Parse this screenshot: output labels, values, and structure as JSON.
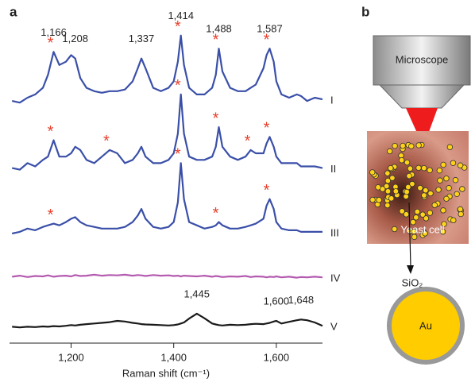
{
  "panel_labels": [
    "a",
    "b"
  ],
  "chart_data": {
    "type": "line",
    "xlabel": "Raman shift (cm⁻¹)",
    "xlim": [
      1080,
      1690
    ],
    "ylim": [
      0,
      100
    ],
    "xticks": [
      {
        "value": 1200,
        "label": "1,200"
      },
      {
        "value": 1400,
        "label": "1,400"
      },
      {
        "value": 1600,
        "label": "1,600"
      }
    ],
    "marker": "*",
    "marker_color": "#e8402a",
    "x": [
      1085,
      1100,
      1115,
      1130,
      1145,
      1155,
      1166,
      1177,
      1190,
      1200,
      1208,
      1218,
      1230,
      1245,
      1260,
      1275,
      1290,
      1305,
      1320,
      1330,
      1337,
      1345,
      1360,
      1375,
      1390,
      1400,
      1408,
      1414,
      1420,
      1430,
      1445,
      1460,
      1475,
      1482,
      1488,
      1495,
      1510,
      1525,
      1540,
      1550,
      1560,
      1575,
      1581,
      1587,
      1595,
      1600,
      1610,
      1625,
      1640,
      1648,
      1660,
      1675,
      1690
    ],
    "series": [
      {
        "name": "I",
        "color": "#3a4fa8",
        "values": [
          74,
          73.5,
          75,
          76,
          78,
          82,
          89,
          85,
          86,
          88,
          87,
          81,
          78,
          77,
          76.5,
          77,
          77,
          77.5,
          80,
          84,
          87,
          84,
          78,
          77,
          78,
          80,
          86,
          94,
          85,
          78,
          76,
          76,
          78,
          82,
          90,
          83,
          78,
          77,
          77,
          78,
          79,
          84,
          88,
          90,
          86,
          80,
          76,
          75,
          76,
          75.5,
          74,
          75,
          74.5
        ],
        "markers": [
          1166,
          1414,
          1488,
          1587
        ],
        "peaks": [
          {
            "value": 1166,
            "label": "1,166"
          },
          {
            "value": 1208,
            "label": "1,208"
          },
          {
            "value": 1337,
            "label": "1,337"
          },
          {
            "value": 1414,
            "label": "1,414"
          },
          {
            "value": 1488,
            "label": "1,488"
          },
          {
            "value": 1587,
            "label": "1,587"
          }
        ]
      },
      {
        "name": "II",
        "color": "#3a4fa8",
        "values": [
          53.5,
          53,
          55,
          54,
          56,
          57,
          62,
          57,
          57,
          58,
          60,
          59,
          56,
          55,
          57,
          59,
          58,
          55,
          56,
          58,
          60,
          57,
          55,
          55,
          56,
          58,
          64,
          76,
          64,
          57,
          56,
          56,
          57,
          60,
          66,
          60,
          57,
          56,
          57,
          59,
          58,
          58,
          61,
          63,
          60,
          57,
          55,
          55,
          55,
          54,
          54,
          54,
          53.5
        ],
        "markers": [
          1166,
          1275,
          1414,
          1488,
          1550,
          1587
        ]
      },
      {
        "name": "III",
        "color": "#3a4fa8",
        "values": [
          33.5,
          34,
          35,
          34.5,
          35.5,
          36,
          36.5,
          36,
          37,
          38,
          38.5,
          37,
          36,
          35.5,
          35,
          35,
          35,
          35.5,
          37,
          39,
          41,
          38,
          35.5,
          35,
          35.5,
          37,
          43,
          55,
          44,
          37,
          36,
          35,
          35.5,
          36,
          37,
          36,
          35,
          35,
          35.5,
          36,
          36.5,
          38,
          42,
          44,
          41,
          37,
          35,
          34.5,
          34.5,
          34,
          34,
          34,
          34
        ],
        "markers": [
          1166,
          1414,
          1488,
          1587
        ]
      },
      {
        "name": "IV",
        "color": "#b45bb0",
        "values": [
          20.3,
          20.6,
          20.2,
          20.5,
          20.4,
          20.7,
          20.3,
          20.5,
          20.6,
          20.4,
          20.8,
          20.5,
          20.6,
          20.9,
          20.6,
          20.8,
          20.7,
          20.9,
          20.6,
          20.8,
          20.7,
          20.5,
          20.8,
          20.6,
          20.7,
          20.5,
          20.6,
          20.4,
          20.6,
          20.5,
          20.4,
          20.6,
          20.3,
          20.5,
          20.4,
          20.2,
          20.4,
          20.3,
          20.5,
          20.2,
          20.4,
          20.3,
          20.1,
          20.3,
          20.2,
          20.4,
          20.1,
          20.3,
          20.0,
          20.2,
          20.1,
          20.3,
          20.1
        ]
      },
      {
        "name": "V",
        "color": "#1a1a1a",
        "values": [
          5,
          4.8,
          5,
          4.9,
          5.1,
          5,
          5.2,
          5.1,
          5.3,
          5.5,
          5.4,
          5.6,
          5.8,
          6,
          6.2,
          6.4,
          6.8,
          6.6,
          6.2,
          6,
          5.8,
          5.7,
          5.6,
          5.5,
          5.4,
          5.5,
          5.7,
          6,
          6.3,
          7.5,
          9,
          7.6,
          6,
          5.7,
          5.5,
          5.4,
          5.6,
          5.5,
          5.6,
          5.8,
          5.9,
          5.8,
          6,
          6.2,
          6.6,
          6.8,
          6,
          6.5,
          7,
          7.2,
          7,
          6.3,
          5.3
        ],
        "peaks": [
          {
            "value": 1445,
            "label": "1,445"
          },
          {
            "value": 1600,
            "label": "1,600"
          },
          {
            "value": 1648,
            "label": "1,648"
          }
        ]
      }
    ]
  },
  "diagram": {
    "microscope": "Microscope",
    "cell": "Yeast cell",
    "shell": "SiO₂",
    "core": "Au"
  }
}
